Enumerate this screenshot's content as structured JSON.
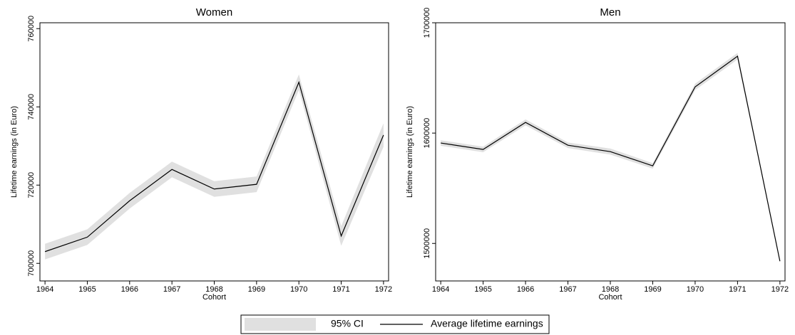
{
  "chart_data": [
    {
      "type": "line",
      "title": "Women",
      "x_label": "Cohort",
      "y_label": "Lifetime earnings (in Euro)",
      "x": [
        1964,
        1965,
        1966,
        1967,
        1968,
        1969,
        1970,
        1971,
        1972
      ],
      "xlim": [
        1963.88,
        1972.12
      ],
      "xticks": [
        1964,
        1965,
        1966,
        1967,
        1968,
        1969,
        1970,
        1971,
        1972
      ],
      "ylim": [
        695500,
        761500
      ],
      "yticks": [
        700000,
        720000,
        740000,
        760000
      ],
      "band": {
        "name": "95% CI",
        "color": "#e0e0e0",
        "lower": [
          701000,
          704700,
          714000,
          722000,
          717000,
          718200,
          744300,
          704500,
          729800
        ],
        "upper": [
          705000,
          708700,
          718000,
          726000,
          721000,
          722200,
          748300,
          709500,
          735800
        ]
      },
      "series": [
        {
          "name": "Average lifetime earnings",
          "color": "#000000",
          "values": [
            703000,
            706700,
            716000,
            724000,
            719000,
            720200,
            746300,
            707000,
            732800
          ]
        }
      ]
    },
    {
      "type": "line",
      "title": "Men",
      "x_label": "Cohort",
      "y_label": "Lifetime earnings (in Euro)",
      "x": [
        1964,
        1965,
        1966,
        1967,
        1968,
        1969,
        1970,
        1971,
        1972
      ],
      "xlim": [
        1963.88,
        1972.12
      ],
      "xticks": [
        1964,
        1965,
        1966,
        1967,
        1968,
        1969,
        1970,
        1971,
        1972
      ],
      "ylim": [
        1466000,
        1700000
      ],
      "yticks": [
        1500000,
        1600000,
        1700000
      ],
      "band": {
        "name": "95% CI",
        "color": "#e0e0e0",
        "lower": [
          1588500,
          1582700,
          1607000,
          1586500,
          1580500,
          1567800,
          1639000,
          1666700,
          1482900
        ],
        "upper": [
          1593500,
          1587700,
          1612400,
          1591500,
          1586000,
          1572800,
          1644800,
          1672700,
          1484900
        ]
      },
      "series": [
        {
          "name": "Average lifetime earnings",
          "color": "#000000",
          "values": [
            1591000,
            1585200,
            1609700,
            1589000,
            1583200,
            1570300,
            1641900,
            1669700,
            1483900
          ]
        }
      ]
    }
  ]
}
